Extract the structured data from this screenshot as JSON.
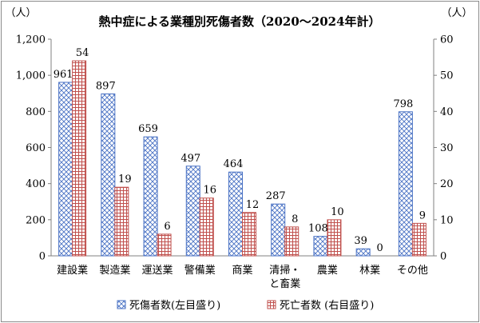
{
  "chart_data": {
    "type": "bar",
    "title": "熱中症による業種別死傷者数（2020～2024年計）",
    "left_axis_unit": "（人）",
    "right_axis_unit": "（人）",
    "categories": [
      [
        "建設業"
      ],
      [
        "製造業"
      ],
      [
        "運送業"
      ],
      [
        "警備業"
      ],
      [
        "商業"
      ],
      [
        "清掃・",
        "と畜業"
      ],
      [
        "農業"
      ],
      [
        "林業"
      ],
      [
        "その他"
      ]
    ],
    "series": [
      {
        "name": "死傷者数(左目盛り)",
        "axis": "left",
        "color": "#4a72c4",
        "pattern": "crosshatch",
        "values": [
          961,
          897,
          659,
          497,
          464,
          287,
          108,
          39,
          798
        ]
      },
      {
        "name": "死亡者数 (右目盛り)",
        "axis": "right",
        "color": "#c0504d",
        "pattern": "grid",
        "values": [
          54,
          19,
          6,
          16,
          12,
          8,
          10,
          0,
          9
        ]
      }
    ],
    "left_axis": {
      "min": 0,
      "max": 1200,
      "step": 200,
      "tick_labels": [
        "0",
        "200",
        "400",
        "600",
        "800",
        "1,000",
        "1,200"
      ]
    },
    "right_axis": {
      "min": 0,
      "max": 60,
      "step": 10,
      "tick_labels": [
        "0",
        "10",
        "20",
        "30",
        "40",
        "50",
        "60"
      ]
    },
    "grid": false,
    "legend_position": "bottom"
  }
}
